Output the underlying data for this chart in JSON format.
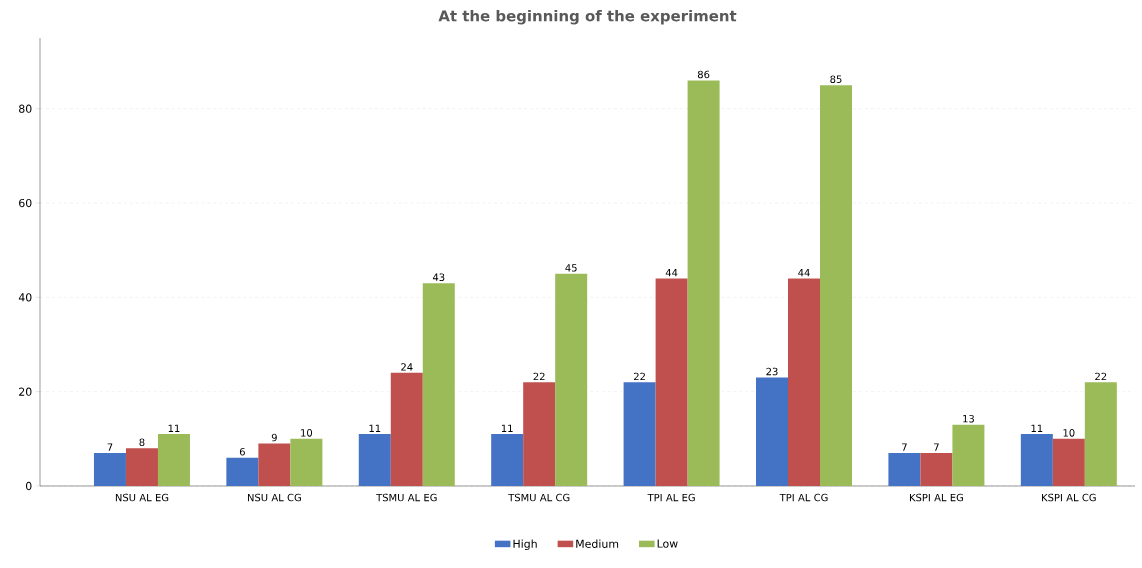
{
  "chart_data": {
    "type": "bar",
    "title": "At the beginning of the experiment",
    "categories": [
      "NSU AL EG",
      "NSU AL CG",
      "TSMU AL EG",
      "TSMU AL CG",
      "TPI AL EG",
      "TPI AL CG",
      "KSPI AL EG",
      "KSPI AL CG"
    ],
    "series": [
      {
        "name": "High",
        "color": "#4472c4",
        "values": [
          7,
          6,
          11,
          11,
          22,
          23,
          7,
          11
        ]
      },
      {
        "name": "Medium",
        "color": "#c0504d",
        "values": [
          8,
          9,
          24,
          22,
          44,
          44,
          7,
          10
        ]
      },
      {
        "name": "Low",
        "color": "#9bbb59",
        "values": [
          11,
          10,
          43,
          45,
          86,
          85,
          13,
          22
        ]
      }
    ],
    "ylim": [
      0,
      95
    ],
    "yticks": [
      0,
      20,
      40,
      60,
      80
    ],
    "grid": "y",
    "legend": "bottom",
    "data_labels": true
  }
}
